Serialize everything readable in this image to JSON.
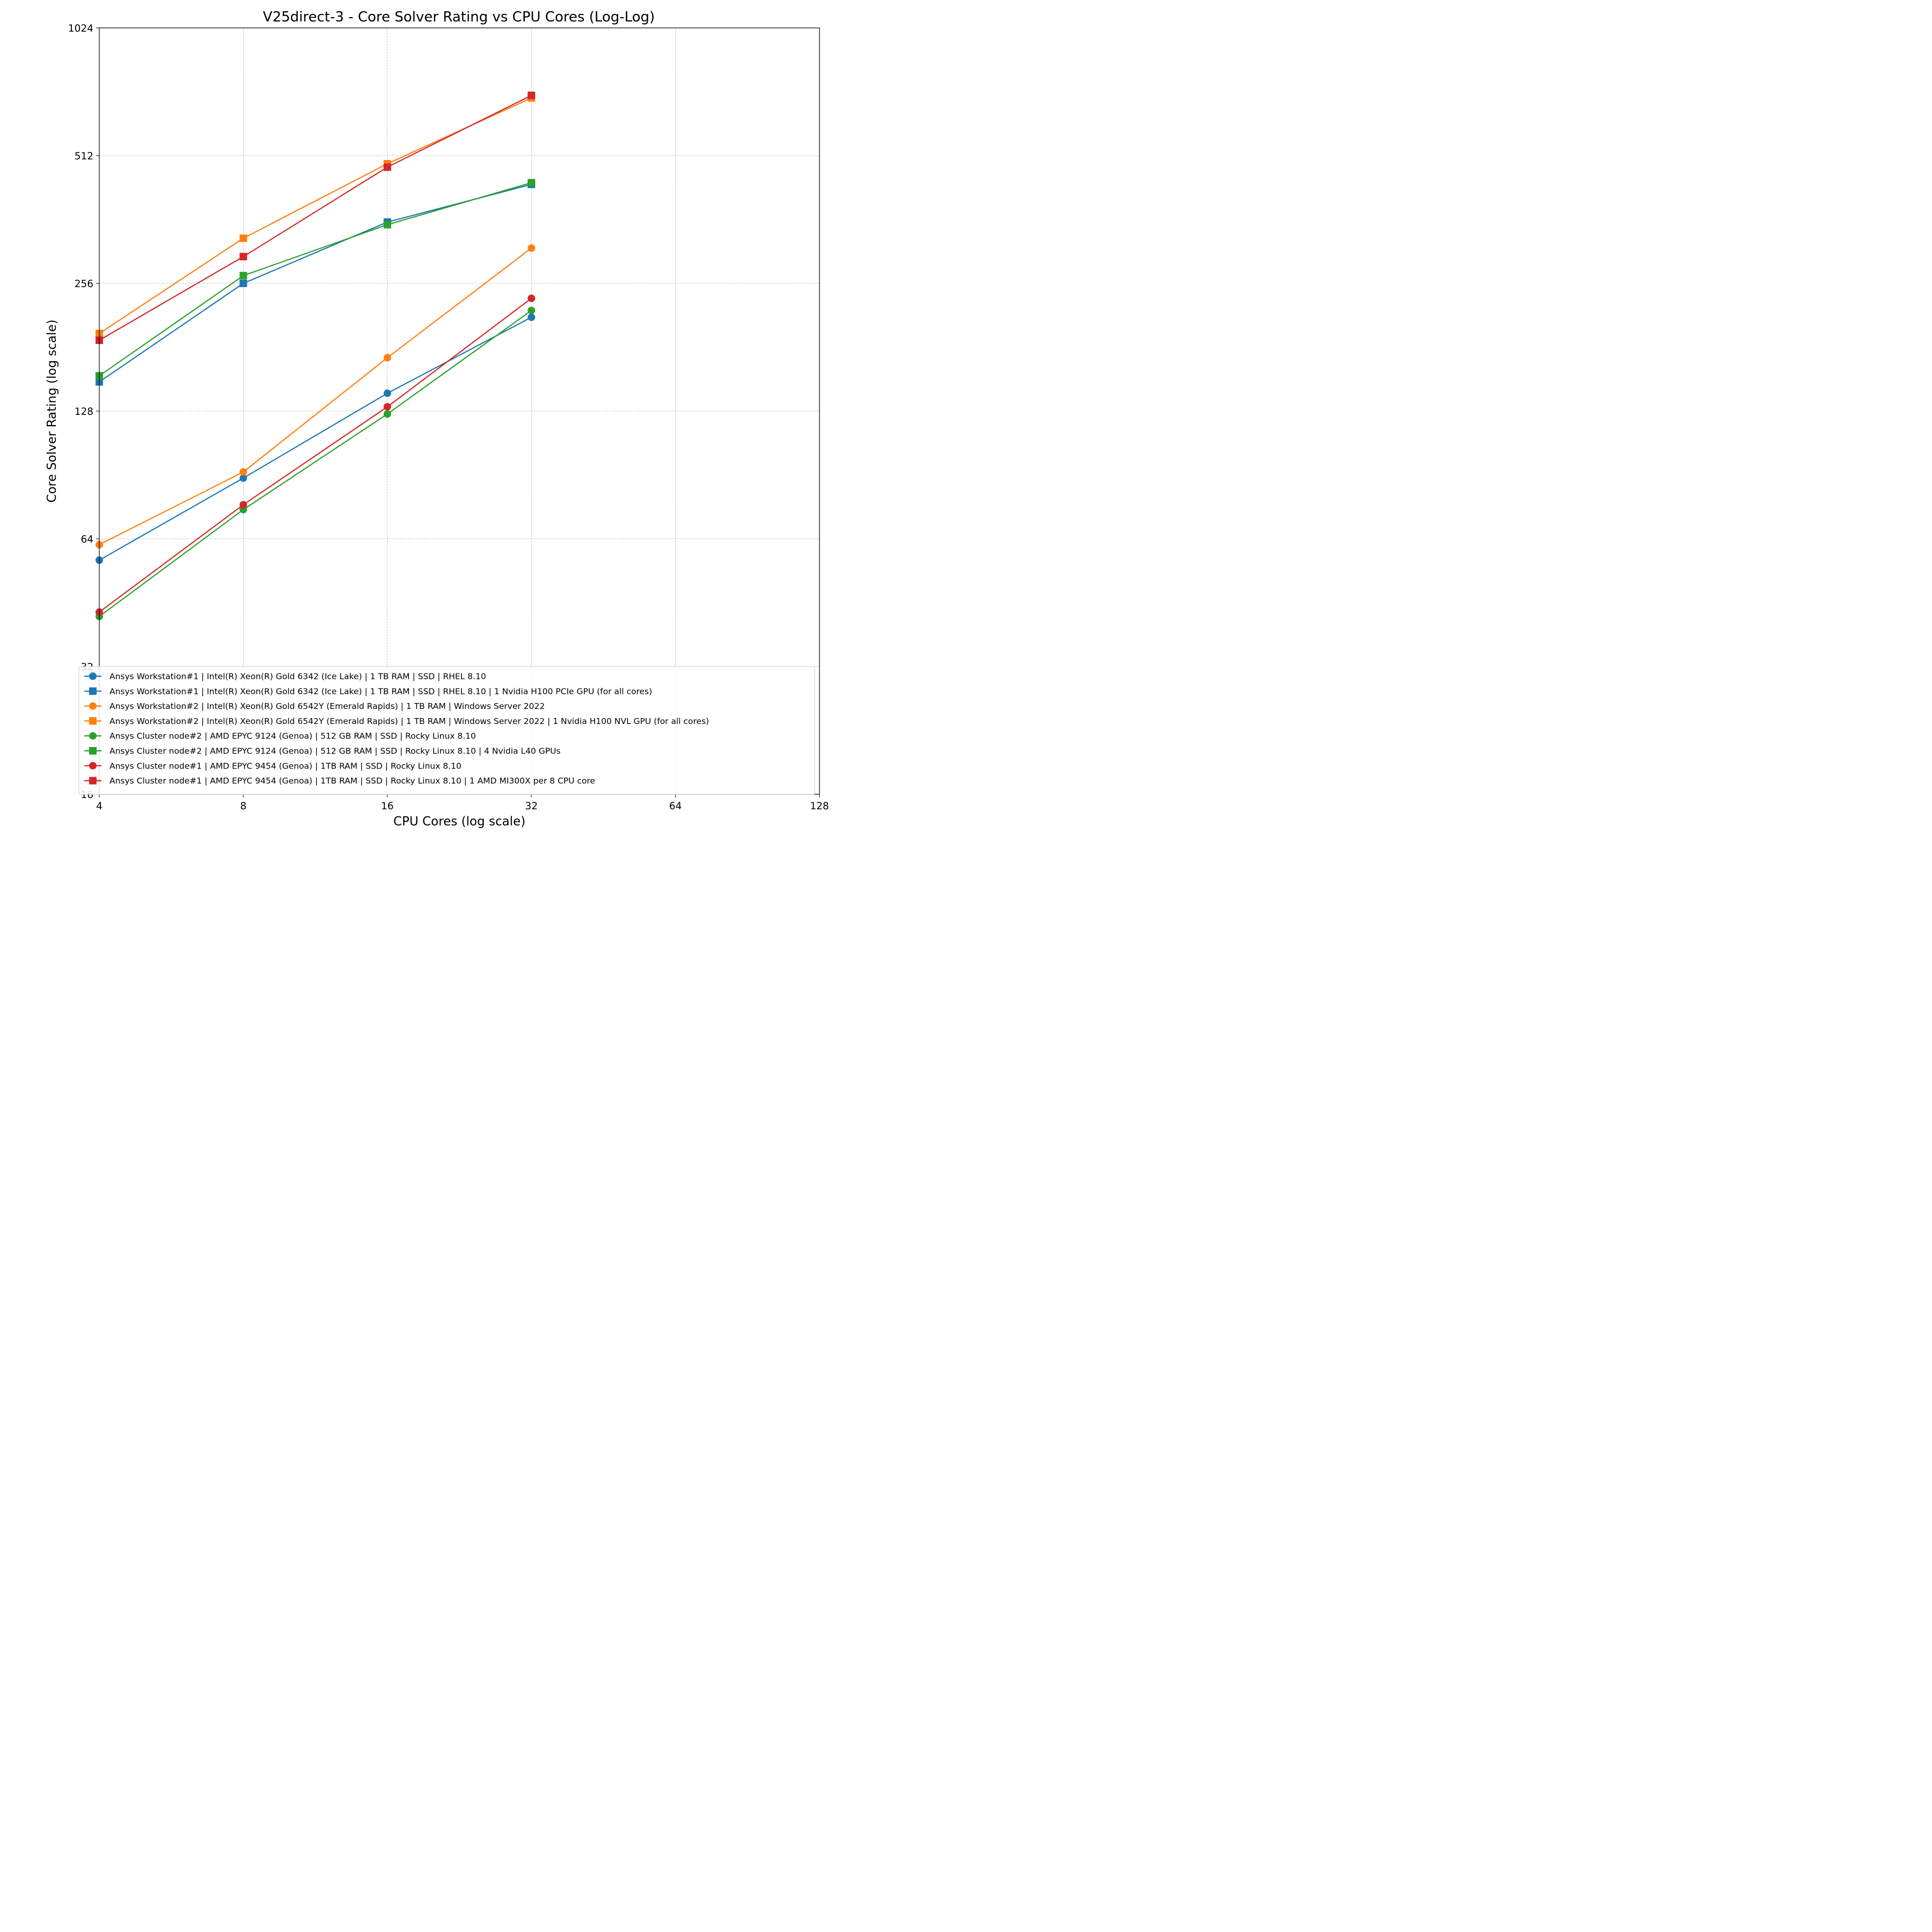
{
  "chart_data": {
    "type": "line",
    "title": "V25direct-3 - Core Solver Rating vs CPU Cores (Log-Log)",
    "xlabel": "CPU Cores (log scale)",
    "ylabel": "Core Solver Rating (log scale)",
    "xscale": "log2",
    "yscale": "log2",
    "xlim": [
      4,
      128
    ],
    "ylim": [
      16,
      1024
    ],
    "xticks": [
      "4",
      "8",
      "16",
      "32",
      "64",
      "128"
    ],
    "yticks": [
      "16",
      "32",
      "64",
      "128",
      "256",
      "512",
      "1024"
    ],
    "grid": true,
    "legend_position": "lower-right",
    "series": [
      {
        "name": "Ansys Workstation#1 | Intel(R) Xeon(R) Gold 6342 (Ice Lake) | 1 TB RAM | SSD | RHEL 8.10",
        "color": "#1f77b4",
        "marker": "circle",
        "x": [
          4,
          8,
          16,
          32
        ],
        "y": [
          57,
          89,
          141,
          213
        ]
      },
      {
        "name": "Ansys Workstation#1 | Intel(R) Xeon(R) Gold 6342 (Ice Lake) | 1 TB RAM | SSD | RHEL 8.10 | 1 Nvidia H100 PCIe GPU (for all cores)",
        "color": "#1f77b4",
        "marker": "square",
        "x": [
          4,
          8,
          16,
          32
        ],
        "y": [
          150,
          256,
          357,
          438
        ]
      },
      {
        "name": "Ansys Workstation#2 | Intel(R) Xeon(R) Gold 6542Y (Emerald Rapids) | 1 TB RAM | Windows Server 2022",
        "color": "#ff7f0e",
        "marker": "circle",
        "x": [
          4,
          8,
          16,
          32
        ],
        "y": [
          62,
          92,
          171,
          310
        ]
      },
      {
        "name": "Ansys Workstation#2 | Intel(R) Xeon(R) Gold 6542Y (Emerald Rapids) | 1 TB RAM | Windows Server 2022 | 1 Nvidia H100 NVL GPU (for all cores)",
        "color": "#ff7f0e",
        "marker": "square",
        "x": [
          4,
          8,
          16,
          32
        ],
        "y": [
          195,
          327,
          490,
          700
        ]
      },
      {
        "name": "Ansys Cluster node#2 | AMD EPYC 9124 (Genoa) | 512 GB RAM | SSD | Rocky Linux 8.10",
        "color": "#2ca02c",
        "marker": "circle",
        "x": [
          4,
          8,
          16,
          32
        ],
        "y": [
          42,
          75,
          126,
          221
        ]
      },
      {
        "name": "Ansys Cluster node#2 | AMD EPYC 9124 (Genoa) | 512 GB RAM | SSD | Rocky Linux 8.10 | 4 Nvidia L40 GPUs",
        "color": "#2ca02c",
        "marker": "square",
        "x": [
          4,
          8,
          16,
          32
        ],
        "y": [
          155,
          267,
          352,
          442
        ]
      },
      {
        "name": "Ansys Cluster node#1 | AMD EPYC 9454 (Genoa) | 1TB  RAM | SSD | Rocky Linux 8.10",
        "color": "#d62728",
        "marker": "circle",
        "x": [
          4,
          8,
          16,
          32
        ],
        "y": [
          43,
          77,
          131,
          236
        ]
      },
      {
        "name": "Ansys Cluster node#1 | AMD EPYC 9454 (Genoa) | 1TB  RAM | SSD | Rocky Linux 8.10 | 1 AMD MI300X per 8 CPU core",
        "color": "#d62728",
        "marker": "square",
        "x": [
          4,
          8,
          16,
          32
        ],
        "y": [
          188,
          296,
          481,
          710
        ]
      }
    ]
  }
}
